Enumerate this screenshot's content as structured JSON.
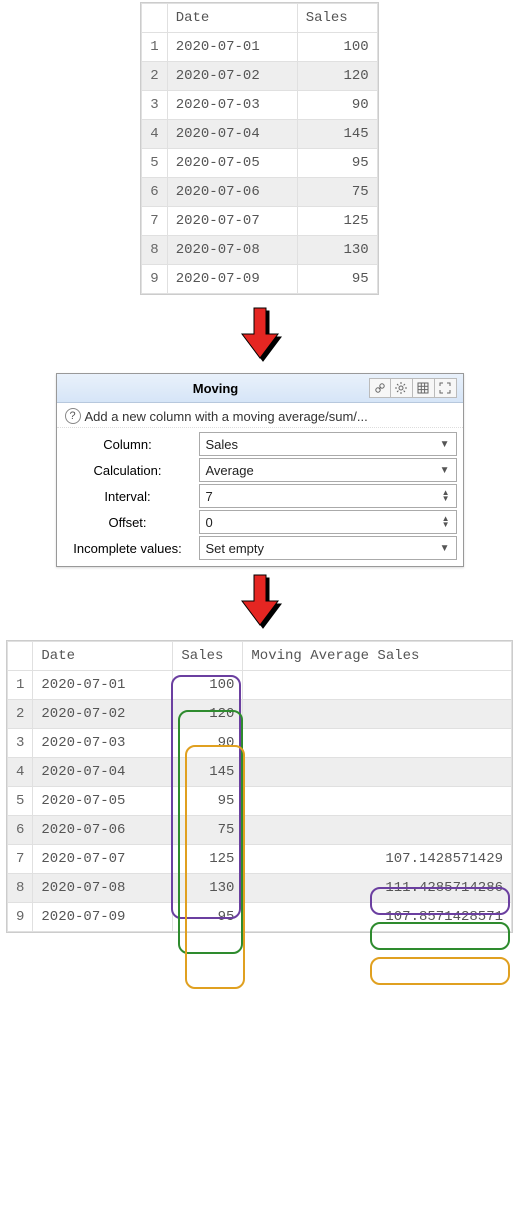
{
  "table1": {
    "columns": [
      "Date",
      "Sales"
    ],
    "rows": [
      {
        "n": "1",
        "date": "2020-07-01",
        "sales": "100"
      },
      {
        "n": "2",
        "date": "2020-07-02",
        "sales": "120"
      },
      {
        "n": "3",
        "date": "2020-07-03",
        "sales": "90"
      },
      {
        "n": "4",
        "date": "2020-07-04",
        "sales": "145"
      },
      {
        "n": "5",
        "date": "2020-07-05",
        "sales": "95"
      },
      {
        "n": "6",
        "date": "2020-07-06",
        "sales": "75"
      },
      {
        "n": "7",
        "date": "2020-07-07",
        "sales": "125"
      },
      {
        "n": "8",
        "date": "2020-07-08",
        "sales": "130"
      },
      {
        "n": "9",
        "date": "2020-07-09",
        "sales": "95"
      }
    ],
    "col_widths": {
      "rownum": 24,
      "date": 130,
      "sales": 80
    },
    "alt_row_bg": "#eeeeee",
    "border_color": "#e0e0e0",
    "font": "Consolas",
    "font_size": 14
  },
  "arrow": {
    "color": "#e52620",
    "shadow": "#000000",
    "width": 40,
    "height": 52
  },
  "panel": {
    "title": "Moving",
    "desc": "Add a new column with a moving average/sum/...",
    "fields": {
      "column": {
        "label": "Column:",
        "value": "Sales"
      },
      "calculation": {
        "label": "Calculation:",
        "value": "Average"
      },
      "interval": {
        "label": "Interval:",
        "value": "7"
      },
      "offset": {
        "label": "Offset:",
        "value": "0"
      },
      "incomplete": {
        "label": "Incomplete values:",
        "value": "Set empty"
      }
    },
    "title_bg_top": "#e9f1fb",
    "title_bg_bot": "#d6e5f7"
  },
  "table2": {
    "columns": [
      "Date",
      "Sales",
      "Moving Average Sales"
    ],
    "rows": [
      {
        "n": "1",
        "date": "2020-07-01",
        "sales": "100",
        "mov": ""
      },
      {
        "n": "2",
        "date": "2020-07-02",
        "sales": "120",
        "mov": ""
      },
      {
        "n": "3",
        "date": "2020-07-03",
        "sales": "90",
        "mov": ""
      },
      {
        "n": "4",
        "date": "2020-07-04",
        "sales": "145",
        "mov": ""
      },
      {
        "n": "5",
        "date": "2020-07-05",
        "sales": "95",
        "mov": ""
      },
      {
        "n": "6",
        "date": "2020-07-06",
        "sales": "75",
        "mov": ""
      },
      {
        "n": "7",
        "date": "2020-07-07",
        "sales": "125",
        "mov": "107.1428571429"
      },
      {
        "n": "8",
        "date": "2020-07-08",
        "sales": "130",
        "mov": "111.4285714286"
      },
      {
        "n": "9",
        "date": "2020-07-09",
        "sales": "95",
        "mov": "107.8571428571"
      }
    ],
    "col_widths": {
      "rownum": 24,
      "date": 140,
      "sales": 70,
      "mov": 260
    }
  },
  "overlays": {
    "purple": {
      "color": "#6b3fa0"
    },
    "green": {
      "color": "#2e8b2e"
    },
    "orange": {
      "color": "#e0a020"
    }
  }
}
